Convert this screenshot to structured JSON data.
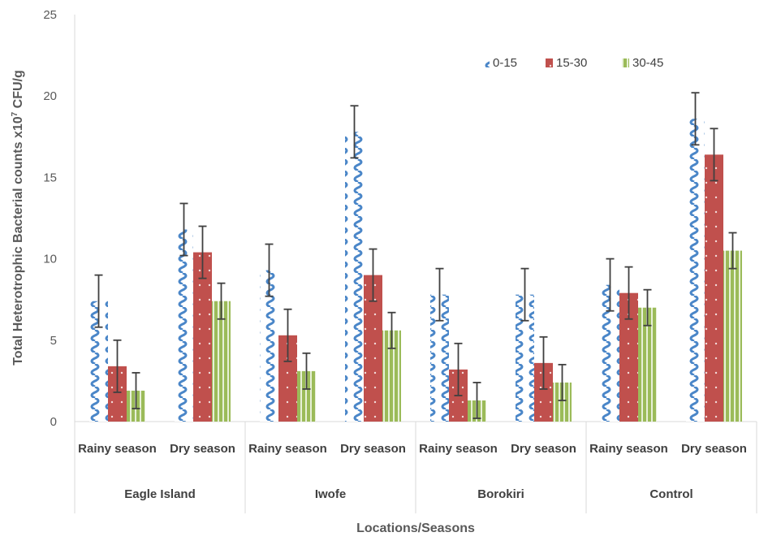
{
  "chart_data": {
    "type": "bar",
    "ylabel_main": "Total Heterotrophic Bacterial counts x10",
    "ylabel_sup": "7",
    "ylabel_unit": " CFU/g",
    "xlabel": "Locations/Seasons",
    "ylim": [
      0,
      25
    ],
    "yticks": [
      "0",
      "5",
      "10",
      "15",
      "20",
      "25"
    ],
    "grid": false,
    "legend_position": "top-right",
    "groups": [
      "Eagle Island",
      "Iwofe",
      "Borokiri",
      "Control"
    ],
    "categories": [
      "Rainy season",
      "Dry season",
      "Rainy season",
      "Dry season",
      "Rainy season",
      "Dry season",
      "Rainy season",
      "Dry season"
    ],
    "series": [
      {
        "name": "0-15",
        "color": "#4a86c8",
        "pattern": "wave",
        "values": [
          7.4,
          11.8,
          9.3,
          17.8,
          7.8,
          7.8,
          8.4,
          18.6
        ],
        "errors": [
          1.6,
          1.6,
          1.6,
          1.6,
          1.6,
          1.6,
          1.6,
          1.6
        ]
      },
      {
        "name": "15-30",
        "color": "#c0504d",
        "pattern": "dots",
        "values": [
          3.4,
          10.4,
          5.3,
          9.0,
          3.2,
          3.6,
          7.9,
          16.4
        ],
        "errors": [
          1.6,
          1.6,
          1.6,
          1.6,
          1.6,
          1.6,
          1.6,
          1.6
        ]
      },
      {
        "name": "30-45",
        "color": "#9bbb59",
        "pattern": "vlines",
        "values": [
          1.9,
          7.4,
          3.1,
          5.6,
          1.3,
          2.4,
          7.0,
          10.5
        ],
        "errors": [
          1.1,
          1.1,
          1.1,
          1.1,
          1.1,
          1.1,
          1.1,
          1.1
        ]
      }
    ]
  }
}
